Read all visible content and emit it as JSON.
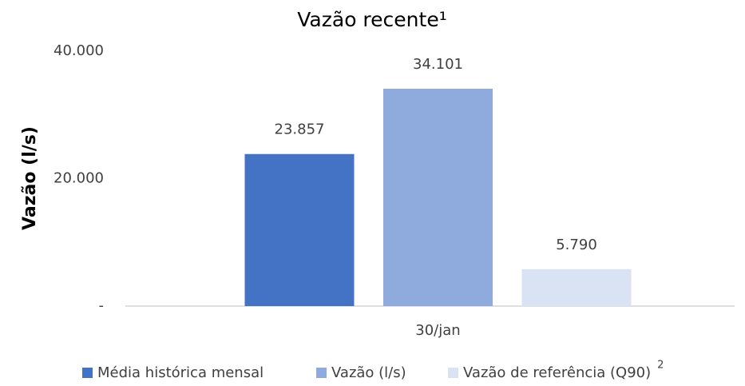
{
  "chart_data": {
    "type": "bar",
    "title": "Vazão recente¹",
    "y_label": "Vazão (l/s)",
    "categories": [
      "30/jan"
    ],
    "series": [
      {
        "name": "Média histórica mensal",
        "color": "#4472c4",
        "values": [
          23857
        ],
        "value_labels": [
          "23.857"
        ]
      },
      {
        "name": "Vazão (l/s)",
        "color": "#8faadc",
        "values": [
          34101
        ],
        "value_labels": [
          "34.101"
        ]
      },
      {
        "name": "Vazão de referência (Q90)",
        "color": "#dae3f3",
        "values": [
          5790
        ],
        "value_labels": [
          "5.790"
        ]
      }
    ],
    "legend_note": "2",
    "ylim": [
      0,
      40000
    ],
    "yticks": [
      {
        "value": 0,
        "label": "-"
      },
      {
        "value": 20000,
        "label": "20.000"
      },
      {
        "value": 40000,
        "label": "40.000"
      }
    ],
    "grid": false,
    "legend": "bottom"
  }
}
